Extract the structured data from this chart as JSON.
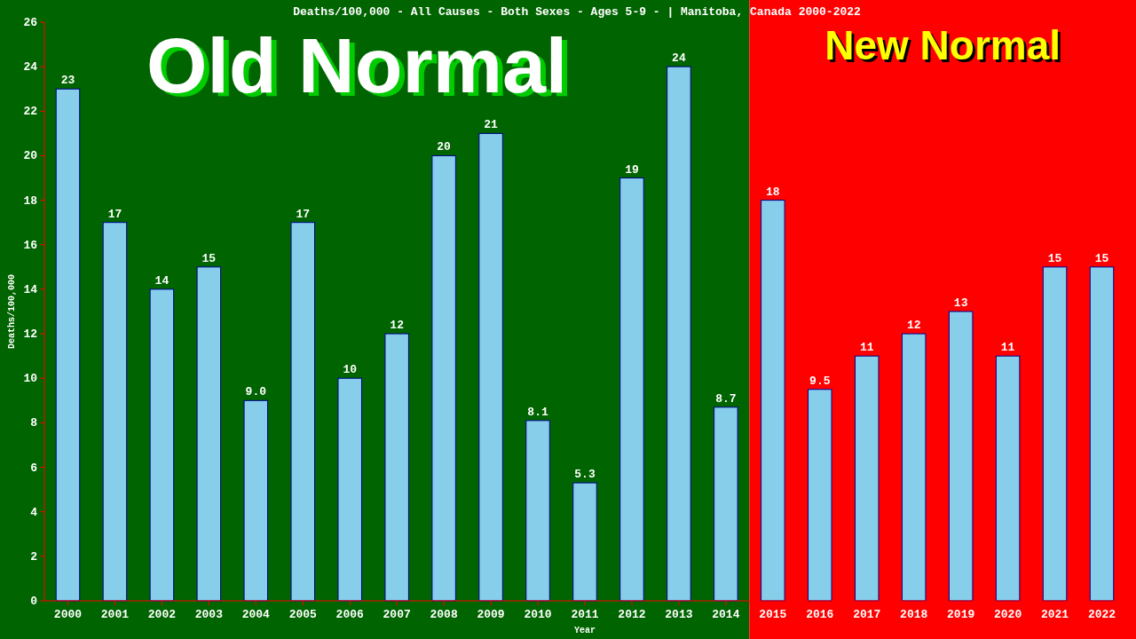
{
  "chart_data": {
    "type": "bar",
    "title": "Deaths/100,000 - All Causes - Both Sexes - Ages 5-9 -  | Manitoba, Canada 2000-2022",
    "xlabel": "Year",
    "ylabel": "Deaths/100,000",
    "categories": [
      "2000",
      "2001",
      "2002",
      "2003",
      "2004",
      "2005",
      "2006",
      "2007",
      "2008",
      "2009",
      "2010",
      "2011",
      "2012",
      "2013",
      "2014",
      "2015",
      "2016",
      "2017",
      "2018",
      "2019",
      "2020",
      "2021",
      "2022"
    ],
    "values": [
      23,
      17,
      14,
      15,
      9.0,
      17,
      10,
      12,
      20,
      21,
      8.1,
      5.3,
      19,
      24,
      8.7,
      18,
      9.5,
      11,
      12,
      13,
      11,
      15,
      15
    ],
    "value_labels": [
      "23",
      "17",
      "14",
      "15",
      "9.0",
      "17",
      "10",
      "12",
      "20",
      "21",
      "8.1",
      "5.3",
      "19",
      "24",
      "8.7",
      "18",
      "9.5",
      "11",
      "12",
      "13",
      "11",
      "15",
      "15"
    ],
    "color": "#87ceeb",
    "ylim": [
      0,
      26
    ],
    "yticks": [
      0,
      2,
      4,
      6,
      8,
      10,
      12,
      14,
      16,
      18,
      20,
      22,
      24,
      26
    ],
    "bands": [
      {
        "axis": "x",
        "from": "2000",
        "to": "2014",
        "label": "Old Normal",
        "color": "#006400"
      },
      {
        "axis": "x",
        "from": "2015",
        "to": "2022",
        "label": "New Normal",
        "color": "#ff0000"
      }
    ]
  }
}
